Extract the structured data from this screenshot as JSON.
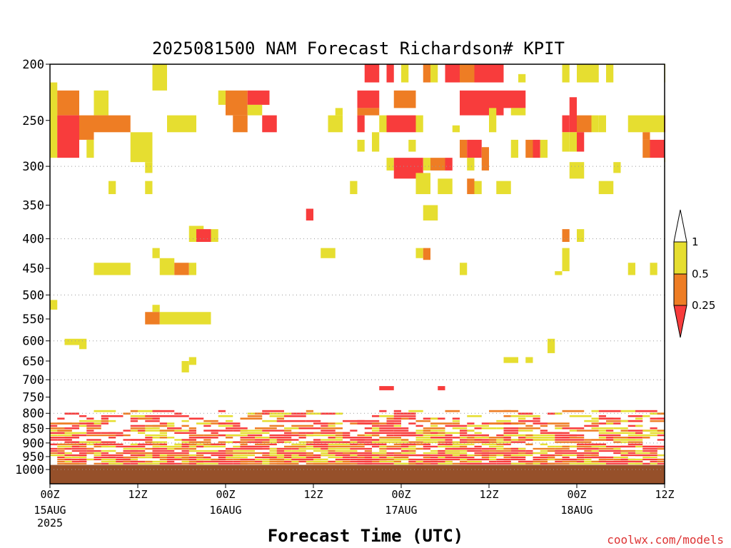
{
  "chart_data": {
    "type": "heatmap",
    "title": "2025081500 NAM Forecast Richardson# KPIT",
    "xlabel": "Forecast Time (UTC)",
    "ylabel": "",
    "y_scale": "log",
    "ylim": [
      1000,
      200
    ],
    "xlim": [
      0,
      84
    ],
    "y_ticks": [
      200,
      250,
      300,
      350,
      400,
      450,
      500,
      550,
      600,
      650,
      700,
      750,
      800,
      850,
      900,
      950,
      1000
    ],
    "dotted_grid_levels": [
      300,
      400,
      500,
      600,
      700,
      800,
      900,
      1000
    ],
    "x_ticks": [
      {
        "hour": 0,
        "label": "00Z",
        "sub": "15AUG",
        "sub2": "2025"
      },
      {
        "hour": 12,
        "label": "12Z",
        "sub": "",
        "sub2": ""
      },
      {
        "hour": 24,
        "label": "00Z",
        "sub": "16AUG",
        "sub2": ""
      },
      {
        "hour": 36,
        "label": "12Z",
        "sub": "",
        "sub2": ""
      },
      {
        "hour": 48,
        "label": "00Z",
        "sub": "17AUG",
        "sub2": ""
      },
      {
        "hour": 60,
        "label": "12Z",
        "sub": "",
        "sub2": ""
      },
      {
        "hour": 72,
        "label": "00Z",
        "sub": "18AUG",
        "sub2": ""
      },
      {
        "hour": 84,
        "label": "12Z",
        "sub": "",
        "sub2": ""
      }
    ],
    "levels": [
      0.25,
      0.5,
      1
    ],
    "colors": {
      "below_0_25": "#f83c3c",
      "0_25_to_0_5": "#ee7d24",
      "0_5_to_1": "#e6de30",
      "above_1": "#ffffff",
      "ground": "#96502a"
    },
    "legend": {
      "labels": [
        "1",
        "0.5",
        "0.25"
      ],
      "placement": "right"
    },
    "surface_pressure": 982,
    "cells": [
      {
        "t0": 14,
        "t1": 16,
        "p0": 200,
        "p1": 222,
        "c": "y"
      },
      {
        "t0": 43,
        "t1": 45,
        "p0": 200,
        "p1": 215,
        "c": "r"
      },
      {
        "t0": 46,
        "t1": 47,
        "p0": 200,
        "p1": 215,
        "c": "r"
      },
      {
        "t0": 48,
        "t1": 49,
        "p0": 200,
        "p1": 215,
        "c": "y"
      },
      {
        "t0": 51,
        "t1": 52,
        "p0": 200,
        "p1": 215,
        "c": "o"
      },
      {
        "t0": 52,
        "t1": 53,
        "p0": 200,
        "p1": 215,
        "c": "y"
      },
      {
        "t0": 54,
        "t1": 56,
        "p0": 200,
        "p1": 215,
        "c": "r"
      },
      {
        "t0": 56,
        "t1": 58,
        "p0": 200,
        "p1": 215,
        "c": "o"
      },
      {
        "t0": 58,
        "t1": 62,
        "p0": 200,
        "p1": 215,
        "c": "r"
      },
      {
        "t0": 64,
        "t1": 65,
        "p0": 208,
        "p1": 215,
        "c": "y"
      },
      {
        "t0": 70,
        "t1": 71,
        "p0": 200,
        "p1": 215,
        "c": "y"
      },
      {
        "t0": 72,
        "t1": 75,
        "p0": 200,
        "p1": 215,
        "c": "y"
      },
      {
        "t0": 76,
        "t1": 77,
        "p0": 200,
        "p1": 215,
        "c": "y"
      },
      {
        "t0": 84,
        "t1": 85,
        "p0": 200,
        "p1": 215,
        "c": "y"
      },
      {
        "t0": 0,
        "t1": 1,
        "p0": 215,
        "p1": 290,
        "c": "y"
      },
      {
        "t0": 1,
        "t1": 4,
        "p0": 222,
        "p1": 245,
        "c": "o"
      },
      {
        "t0": 1,
        "t1": 4,
        "p0": 245,
        "p1": 290,
        "c": "r"
      },
      {
        "t0": 4,
        "t1": 6,
        "p0": 245,
        "p1": 270,
        "c": "o"
      },
      {
        "t0": 5,
        "t1": 6,
        "p0": 270,
        "p1": 290,
        "c": "y"
      },
      {
        "t0": 6,
        "t1": 8,
        "p0": 222,
        "p1": 245,
        "c": "y"
      },
      {
        "t0": 6,
        "t1": 11,
        "p0": 245,
        "p1": 262,
        "c": "o"
      },
      {
        "t0": 11,
        "t1": 14,
        "p0": 262,
        "p1": 295,
        "c": "y"
      },
      {
        "t0": 16,
        "t1": 20,
        "p0": 245,
        "p1": 262,
        "c": "y"
      },
      {
        "t0": 23,
        "t1": 24,
        "p0": 222,
        "p1": 235,
        "c": "y"
      },
      {
        "t0": 24,
        "t1": 27,
        "p0": 222,
        "p1": 245,
        "c": "o"
      },
      {
        "t0": 27,
        "t1": 30,
        "p0": 222,
        "p1": 235,
        "c": "r"
      },
      {
        "t0": 27,
        "t1": 29,
        "p0": 235,
        "p1": 245,
        "c": "y"
      },
      {
        "t0": 25,
        "t1": 27,
        "p0": 245,
        "p1": 262,
        "c": "o"
      },
      {
        "t0": 29,
        "t1": 31,
        "p0": 245,
        "p1": 262,
        "c": "r"
      },
      {
        "t0": 38,
        "t1": 40,
        "p0": 245,
        "p1": 262,
        "c": "y"
      },
      {
        "t0": 39,
        "t1": 40,
        "p0": 238,
        "p1": 245,
        "c": "y"
      },
      {
        "t0": 42,
        "t1": 43,
        "p0": 270,
        "p1": 283,
        "c": "y"
      },
      {
        "t0": 42,
        "t1": 45,
        "p0": 222,
        "p1": 238,
        "c": "r"
      },
      {
        "t0": 42,
        "t1": 45,
        "p0": 238,
        "p1": 245,
        "c": "o"
      },
      {
        "t0": 42,
        "t1": 43,
        "p0": 245,
        "p1": 262,
        "c": "r"
      },
      {
        "t0": 44,
        "t1": 45,
        "p0": 262,
        "p1": 283,
        "c": "y"
      },
      {
        "t0": 46,
        "t1": 50,
        "p0": 245,
        "p1": 262,
        "c": "r"
      },
      {
        "t0": 47,
        "t1": 50,
        "p0": 222,
        "p1": 238,
        "c": "o"
      },
      {
        "t0": 45,
        "t1": 46,
        "p0": 245,
        "p1": 262,
        "c": "y"
      },
      {
        "t0": 50,
        "t1": 51,
        "p0": 245,
        "p1": 262,
        "c": "y"
      },
      {
        "t0": 49,
        "t1": 50,
        "p0": 270,
        "p1": 283,
        "c": "y"
      },
      {
        "t0": 46,
        "t1": 47,
        "p0": 290,
        "p1": 305,
        "c": "y"
      },
      {
        "t0": 47,
        "t1": 51,
        "p0": 290,
        "p1": 315,
        "c": "r"
      },
      {
        "t0": 51,
        "t1": 52,
        "p0": 290,
        "p1": 305,
        "c": "y"
      },
      {
        "t0": 52,
        "t1": 54,
        "p0": 290,
        "p1": 305,
        "c": "o"
      },
      {
        "t0": 54,
        "t1": 55,
        "p0": 290,
        "p1": 305,
        "c": "r"
      },
      {
        "t0": 56,
        "t1": 57,
        "p0": 270,
        "p1": 290,
        "c": "o"
      },
      {
        "t0": 57,
        "t1": 59,
        "p0": 270,
        "p1": 290,
        "c": "r"
      },
      {
        "t0": 59,
        "t1": 60,
        "p0": 278,
        "p1": 305,
        "c": "o"
      },
      {
        "t0": 57,
        "t1": 58,
        "p0": 290,
        "p1": 305,
        "c": "y"
      },
      {
        "t0": 55,
        "t1": 56,
        "p0": 255,
        "p1": 262,
        "c": "y"
      },
      {
        "t0": 56,
        "t1": 62,
        "p0": 222,
        "p1": 245,
        "c": "r"
      },
      {
        "t0": 60,
        "t1": 61,
        "p0": 238,
        "p1": 262,
        "c": "y"
      },
      {
        "t0": 62,
        "t1": 65,
        "p0": 222,
        "p1": 238,
        "c": "r"
      },
      {
        "t0": 63,
        "t1": 64,
        "p0": 270,
        "p1": 290,
        "c": "y"
      },
      {
        "t0": 63,
        "t1": 65,
        "p0": 238,
        "p1": 245,
        "c": "y"
      },
      {
        "t0": 65,
        "t1": 66,
        "p0": 270,
        "p1": 290,
        "c": "o"
      },
      {
        "t0": 66,
        "t1": 67,
        "p0": 270,
        "p1": 290,
        "c": "r"
      },
      {
        "t0": 67,
        "t1": 68,
        "p0": 270,
        "p1": 290,
        "c": "y"
      },
      {
        "t0": 70,
        "t1": 71,
        "p0": 245,
        "p1": 262,
        "c": "r"
      },
      {
        "t0": 70,
        "t1": 71,
        "p0": 262,
        "p1": 283,
        "c": "y"
      },
      {
        "t0": 71,
        "t1": 72,
        "p0": 228,
        "p1": 262,
        "c": "r"
      },
      {
        "t0": 71,
        "t1": 72,
        "p0": 262,
        "p1": 283,
        "c": "y"
      },
      {
        "t0": 72,
        "t1": 74,
        "p0": 245,
        "p1": 262,
        "c": "o"
      },
      {
        "t0": 74,
        "t1": 75,
        "p0": 245,
        "p1": 262,
        "c": "y"
      },
      {
        "t0": 72,
        "t1": 73,
        "p0": 262,
        "p1": 283,
        "c": "r"
      },
      {
        "t0": 75,
        "t1": 76,
        "p0": 245,
        "p1": 262,
        "c": "y"
      },
      {
        "t0": 79,
        "t1": 80,
        "p0": 245,
        "p1": 262,
        "c": "y"
      },
      {
        "t0": 80,
        "t1": 82,
        "p0": 245,
        "p1": 262,
        "c": "y"
      },
      {
        "t0": 81,
        "t1": 82,
        "p0": 262,
        "p1": 270,
        "c": "o"
      },
      {
        "t0": 82,
        "t1": 84,
        "p0": 245,
        "p1": 262,
        "c": "y"
      },
      {
        "t0": 84,
        "t1": 85,
        "p0": 245,
        "p1": 262,
        "c": "r"
      },
      {
        "t0": 81,
        "t1": 82,
        "p0": 270,
        "p1": 290,
        "c": "o"
      },
      {
        "t0": 82,
        "t1": 85,
        "p0": 270,
        "p1": 290,
        "c": "r"
      },
      {
        "t0": 84,
        "t1": 85,
        "p0": 290,
        "p1": 295,
        "c": "y"
      },
      {
        "t0": 13,
        "t1": 14,
        "p0": 295,
        "p1": 308,
        "c": "y"
      },
      {
        "t0": 71,
        "t1": 73,
        "p0": 295,
        "p1": 315,
        "c": "y"
      },
      {
        "t0": 77,
        "t1": 78,
        "p0": 295,
        "p1": 308,
        "c": "y"
      },
      {
        "t0": 8,
        "t1": 9,
        "p0": 318,
        "p1": 335,
        "c": "y"
      },
      {
        "t0": 13,
        "t1": 14,
        "p0": 318,
        "p1": 335,
        "c": "y"
      },
      {
        "t0": 41,
        "t1": 42,
        "p0": 318,
        "p1": 335,
        "c": "y"
      },
      {
        "t0": 50,
        "t1": 52,
        "p0": 308,
        "p1": 335,
        "c": "y"
      },
      {
        "t0": 53,
        "t1": 55,
        "p0": 315,
        "p1": 335,
        "c": "y"
      },
      {
        "t0": 57,
        "t1": 58,
        "p0": 315,
        "p1": 335,
        "c": "o"
      },
      {
        "t0": 58,
        "t1": 59,
        "p0": 318,
        "p1": 335,
        "c": "y"
      },
      {
        "t0": 61,
        "t1": 63,
        "p0": 318,
        "p1": 335,
        "c": "y"
      },
      {
        "t0": 75,
        "t1": 77,
        "p0": 318,
        "p1": 335,
        "c": "y"
      },
      {
        "t0": 35,
        "t1": 36,
        "p0": 355,
        "p1": 372,
        "c": "r"
      },
      {
        "t0": 51,
        "t1": 53,
        "p0": 350,
        "p1": 372,
        "c": "y"
      },
      {
        "t0": 19,
        "t1": 21,
        "p0": 380,
        "p1": 405,
        "c": "y"
      },
      {
        "t0": 20,
        "t1": 22,
        "p0": 385,
        "p1": 405,
        "c": "r"
      },
      {
        "t0": 22,
        "t1": 23,
        "p0": 385,
        "p1": 405,
        "c": "y"
      },
      {
        "t0": 70,
        "t1": 71,
        "p0": 385,
        "p1": 405,
        "c": "o"
      },
      {
        "t0": 72,
        "t1": 73,
        "p0": 385,
        "p1": 405,
        "c": "y"
      },
      {
        "t0": 14,
        "t1": 15,
        "p0": 415,
        "p1": 432,
        "c": "y"
      },
      {
        "t0": 37,
        "t1": 39,
        "p0": 415,
        "p1": 432,
        "c": "y"
      },
      {
        "t0": 50,
        "t1": 51,
        "p0": 415,
        "p1": 432,
        "c": "y"
      },
      {
        "t0": 51,
        "t1": 52,
        "p0": 415,
        "p1": 435,
        "c": "o"
      },
      {
        "t0": 70,
        "t1": 71,
        "p0": 415,
        "p1": 455,
        "c": "y"
      },
      {
        "t0": 6,
        "t1": 11,
        "p0": 440,
        "p1": 462,
        "c": "y"
      },
      {
        "t0": 15,
        "t1": 17,
        "p0": 432,
        "p1": 462,
        "c": "y"
      },
      {
        "t0": 17,
        "t1": 19,
        "p0": 440,
        "p1": 462,
        "c": "o"
      },
      {
        "t0": 19,
        "t1": 20,
        "p0": 440,
        "p1": 462,
        "c": "y"
      },
      {
        "t0": 56,
        "t1": 57,
        "p0": 440,
        "p1": 462,
        "c": "y"
      },
      {
        "t0": 69,
        "t1": 70,
        "p0": 455,
        "p1": 462,
        "c": "y"
      },
      {
        "t0": 79,
        "t1": 80,
        "p0": 440,
        "p1": 462,
        "c": "y"
      },
      {
        "t0": 82,
        "t1": 83,
        "p0": 440,
        "p1": 462,
        "c": "y"
      },
      {
        "t0": 0,
        "t1": 1,
        "p0": 510,
        "p1": 530,
        "c": "y"
      },
      {
        "t0": 14,
        "t1": 15,
        "p0": 520,
        "p1": 535,
        "c": "y"
      },
      {
        "t0": 13,
        "t1": 15,
        "p0": 535,
        "p1": 562,
        "c": "o"
      },
      {
        "t0": 15,
        "t1": 22,
        "p0": 535,
        "p1": 562,
        "c": "y"
      },
      {
        "t0": 2,
        "t1": 4,
        "p0": 595,
        "p1": 610,
        "c": "y"
      },
      {
        "t0": 4,
        "t1": 5,
        "p0": 595,
        "p1": 620,
        "c": "y"
      },
      {
        "t0": 68,
        "t1": 69,
        "p0": 595,
        "p1": 630,
        "c": "y"
      },
      {
        "t0": 18,
        "t1": 19,
        "p0": 650,
        "p1": 680,
        "c": "y"
      },
      {
        "t0": 19,
        "t1": 20,
        "p0": 640,
        "p1": 660,
        "c": "y"
      },
      {
        "t0": 62,
        "t1": 64,
        "p0": 640,
        "p1": 655,
        "c": "y"
      },
      {
        "t0": 65,
        "t1": 66,
        "p0": 640,
        "p1": 655,
        "c": "y"
      },
      {
        "t0": 45,
        "t1": 47,
        "p0": 718,
        "p1": 730,
        "c": "r"
      },
      {
        "t0": 53,
        "t1": 54,
        "p0": 718,
        "p1": 730,
        "c": "r"
      }
    ],
    "boundary_layer": {
      "t0": 0,
      "t1": 85,
      "p_top": 790,
      "p_bottom": 982
    }
  },
  "credit": "coolwx.com/models"
}
